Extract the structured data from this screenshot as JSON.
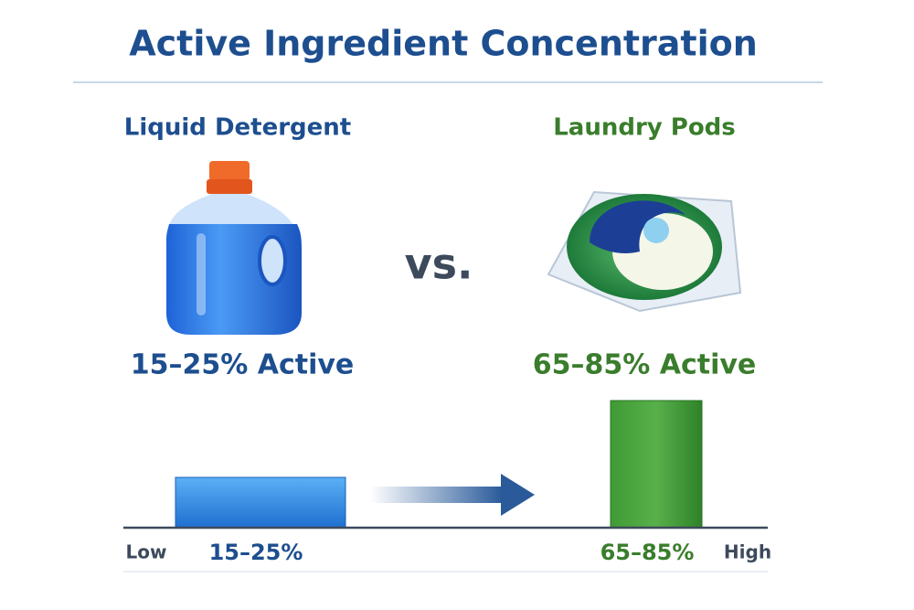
{
  "title": "Active Ingredient Concentration",
  "comparison": {
    "left": {
      "name": "Liquid Detergent",
      "concentration": "15–25% Active",
      "scale_label": "15–25%"
    },
    "separator": "vs.",
    "right": {
      "name": "Laundry Pods",
      "concentration": "65–85% Active",
      "scale_label": "65–85%"
    }
  },
  "scale": {
    "low": "Low",
    "high": "High"
  }
}
